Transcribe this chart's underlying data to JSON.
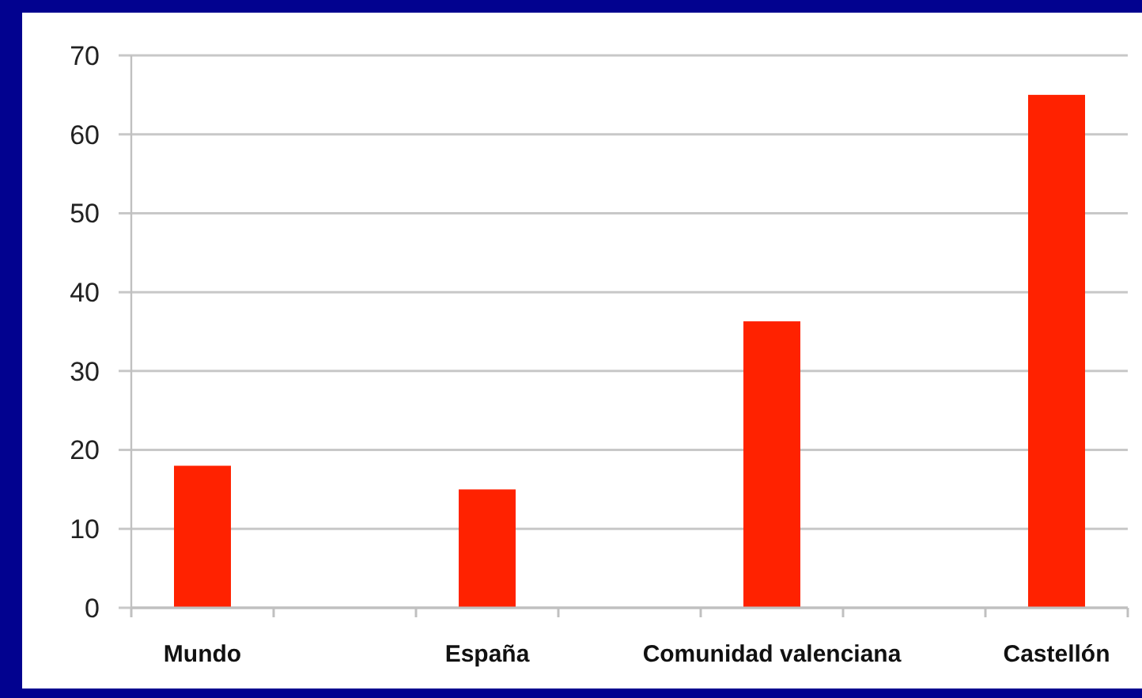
{
  "chart_data": {
    "type": "bar",
    "categories": [
      "Mundo",
      null,
      "España",
      null,
      "Comunidad valenciana",
      null,
      "Castellón"
    ],
    "values": [
      18,
      null,
      15,
      null,
      36.3,
      null,
      65
    ],
    "color": "#ff2200",
    "ylim": [
      0,
      70
    ],
    "yticks": [
      0,
      10,
      20,
      30,
      40,
      50,
      60,
      70
    ],
    "grid": "y"
  }
}
